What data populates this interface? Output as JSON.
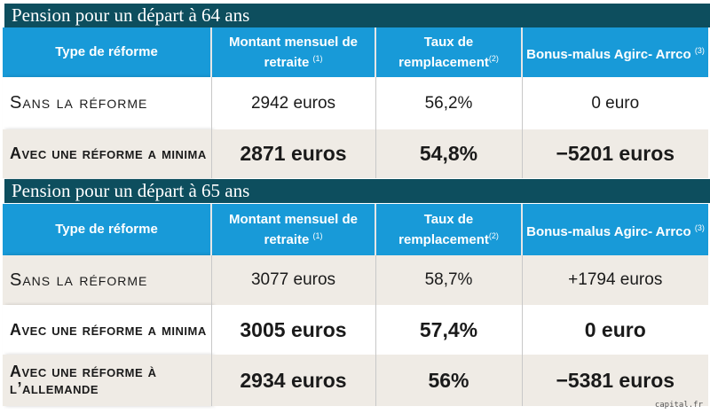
{
  "sections": [
    {
      "title": "Pension pour un départ à 64 ans",
      "headers": [
        {
          "text": "Type de réforme",
          "note": ""
        },
        {
          "text": "Montant mensuel de retraite",
          "note": "(1)"
        },
        {
          "text": "Taux de remplacement",
          "note": "(2)"
        },
        {
          "text": "Bonus-malus Agirc- Arrco",
          "note": "(3)"
        }
      ],
      "rows": [
        {
          "type": "Sans la réforme",
          "montant": "2942 euros",
          "taux": "56,2%",
          "bonus": "0 euro"
        },
        {
          "type": "Avec une réforme a minima",
          "montant": "2871 euros",
          "taux": "54,8%",
          "bonus": "−5201 euros"
        }
      ]
    },
    {
      "title": "Pension pour un départ à 65 ans",
      "headers": [
        {
          "text": "Type de réforme",
          "note": ""
        },
        {
          "text": "Montant mensuel de retraite",
          "note": "(1)"
        },
        {
          "text": "Taux de remplacement",
          "note": "(2)"
        },
        {
          "text": "Bonus-malus Agirc- Arrco",
          "note": "(3)"
        }
      ],
      "rows": [
        {
          "type": "Sans la réforme",
          "montant": "3077 euros",
          "taux": "58,7%",
          "bonus": "+1794 euros"
        },
        {
          "type": "Avec une réforme a minima",
          "montant": "3005 euros",
          "taux": "57,4%",
          "bonus": "0 euro"
        },
        {
          "type": "Avec une réforme à l’allemande",
          "montant": "2934 euros",
          "taux": "56%",
          "bonus": "−5381 euros"
        }
      ]
    }
  ],
  "credit": "capital.fr",
  "colors": {
    "header_blue": "#189ad8",
    "title_bar": "#0d4e5e",
    "row_shade": "#efebe5"
  }
}
